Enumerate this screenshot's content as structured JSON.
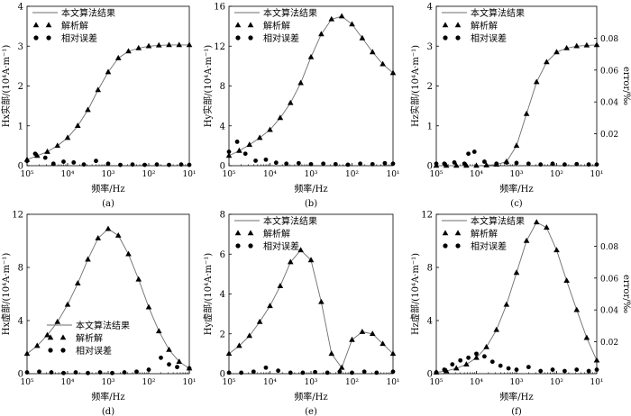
{
  "figure": {
    "x_axis_label": "频率/Hz",
    "x_tick_labels": [
      "10⁵",
      "10⁴",
      "10³",
      "10²",
      "10¹"
    ],
    "right_axis_label": "error/‰",
    "right_tick_labels": [
      "0.02",
      "0.04",
      "0.06",
      "0.08"
    ],
    "legend": {
      "line": "本文算法结果",
      "triangle": "解析解",
      "dot": "相对误差"
    },
    "colors": {
      "line": "#6e6e6e",
      "marker": "#000000"
    }
  },
  "chart_data": [
    {
      "type": "line",
      "panel_label": "(a)",
      "ylabel": "Hx实部/(10⁴A·m⁻¹)",
      "ylim": [
        0,
        4
      ],
      "yticks": [
        0,
        1,
        2,
        3,
        4
      ],
      "right_axis": false,
      "xlim": [
        0,
        4
      ],
      "x_scale": "log (descending 10⁵ → 10¹ Hz)",
      "legend_position": "top-left",
      "series": [
        {
          "name": "本文算法结果",
          "x": [
            0,
            0.25,
            0.5,
            0.75,
            1,
            1.25,
            1.5,
            1.75,
            2,
            2.25,
            2.5,
            2.75,
            3,
            3.25,
            3.5,
            3.75,
            4
          ],
          "values": [
            0.15,
            0.25,
            0.35,
            0.5,
            0.7,
            1.0,
            1.4,
            1.9,
            2.35,
            2.7,
            2.87,
            2.95,
            3.0,
            3.02,
            3.03,
            3.03,
            3.03
          ]
        },
        {
          "name": "解析解",
          "x": [
            0,
            0.25,
            0.5,
            0.75,
            1,
            1.25,
            1.5,
            1.75,
            2,
            2.25,
            2.5,
            2.75,
            3,
            3.25,
            3.5,
            3.75,
            4
          ],
          "values": [
            0.15,
            0.25,
            0.35,
            0.5,
            0.7,
            1.0,
            1.4,
            1.9,
            2.35,
            2.7,
            2.87,
            2.95,
            3.0,
            3.02,
            3.03,
            3.03,
            3.03
          ]
        },
        {
          "name": "相对误差",
          "x": [
            0,
            0.2,
            0.45,
            0.65,
            0.9,
            1.15,
            1.4,
            1.7,
            2,
            2.3,
            2.6,
            2.9,
            3.2,
            3.5,
            3.8,
            4
          ],
          "values": [
            0.12,
            0.3,
            0.2,
            0.05,
            0.1,
            0.08,
            0.03,
            0.12,
            0.05,
            0.02,
            0.03,
            0.02,
            0.03,
            0.02,
            0.03,
            0.02
          ]
        }
      ]
    },
    {
      "type": "line",
      "panel_label": "(b)",
      "ylabel": "Hy实部/(10⁴A·m⁻¹)",
      "ylim": [
        0,
        16
      ],
      "yticks": [
        0,
        4,
        8,
        12,
        16
      ],
      "right_axis": false,
      "xlim": [
        0,
        4
      ],
      "x_scale": "log (descending 10⁵ → 10¹ Hz)",
      "legend_position": "top-left",
      "series": [
        {
          "name": "本文算法结果",
          "x": [
            0,
            0.25,
            0.5,
            0.75,
            1,
            1.25,
            1.5,
            1.75,
            2,
            2.25,
            2.5,
            2.75,
            3,
            3.25,
            3.5,
            3.75,
            4
          ],
          "values": [
            1.0,
            1.5,
            2.1,
            2.8,
            3.6,
            4.8,
            6.3,
            8.3,
            10.9,
            13.2,
            14.7,
            15.0,
            14.2,
            12.8,
            11.4,
            10.2,
            9.3
          ]
        },
        {
          "name": "解析解",
          "x": [
            0,
            0.25,
            0.5,
            0.75,
            1,
            1.25,
            1.5,
            1.75,
            2,
            2.25,
            2.5,
            2.75,
            3,
            3.25,
            3.5,
            3.75,
            4
          ],
          "values": [
            1.0,
            1.5,
            2.1,
            2.8,
            3.6,
            4.8,
            6.3,
            8.3,
            10.9,
            13.2,
            14.7,
            15.0,
            14.2,
            12.8,
            11.4,
            10.2,
            9.3
          ]
        },
        {
          "name": "相对误差",
          "x": [
            0,
            0.2,
            0.4,
            0.65,
            0.9,
            1.15,
            1.4,
            1.7,
            2,
            2.3,
            2.6,
            2.9,
            3.2,
            3.5,
            3.8,
            4
          ],
          "values": [
            1.4,
            2.4,
            1.2,
            0.5,
            0.6,
            0.3,
            0.2,
            0.25,
            0.15,
            0.2,
            0.15,
            0.1,
            0.2,
            0.15,
            0.25,
            0.2
          ]
        }
      ]
    },
    {
      "type": "line",
      "panel_label": "(c)",
      "ylabel": "Hz实部/(10⁴A·m⁻¹)",
      "ylim": [
        0,
        4
      ],
      "yticks": [
        0,
        1,
        2,
        3,
        4
      ],
      "right_axis": true,
      "right_ylim": [
        0,
        0.1
      ],
      "right_yticks": [
        0.02,
        0.04,
        0.06,
        0.08
      ],
      "xlim": [
        0,
        4
      ],
      "x_scale": "log (descending 10⁵ → 10¹ Hz)",
      "legend_position": "top-left",
      "series": [
        {
          "name": "本文算法结果",
          "x": [
            0,
            0.25,
            0.5,
            0.75,
            1,
            1.25,
            1.5,
            1.75,
            2,
            2.25,
            2.5,
            2.75,
            3,
            3.25,
            3.5,
            3.75,
            4
          ],
          "values": [
            0.0,
            0.0,
            0.0,
            0.0,
            0.0,
            0.01,
            0.03,
            0.1,
            0.5,
            1.3,
            2.1,
            2.6,
            2.85,
            2.95,
            3.0,
            3.02,
            3.03
          ]
        },
        {
          "name": "解析解",
          "x": [
            0,
            0.25,
            0.5,
            0.75,
            1,
            1.25,
            1.5,
            1.75,
            2,
            2.25,
            2.5,
            2.75,
            3,
            3.25,
            3.5,
            3.75,
            4
          ],
          "values": [
            0.0,
            0.0,
            0.0,
            0.0,
            0.0,
            0.01,
            0.03,
            0.1,
            0.5,
            1.3,
            2.1,
            2.6,
            2.85,
            2.95,
            3.0,
            3.02,
            3.03
          ]
        },
        {
          "name": "相对误差",
          "x": [
            0,
            0.2,
            0.45,
            0.7,
            0.8,
            0.95,
            1.2,
            1.5,
            1.75,
            2,
            2.3,
            2.6,
            2.9,
            3.2,
            3.5,
            3.8,
            4
          ],
          "values": [
            0.05,
            0.05,
            0.08,
            0.05,
            0.3,
            0.35,
            0.1,
            0.05,
            0.08,
            0.07,
            0.05,
            0.03,
            0.05,
            0.03,
            0.04,
            0.03,
            0.03
          ]
        }
      ]
    },
    {
      "type": "line",
      "panel_label": "(d)",
      "ylabel": "Hx虚部/(10⁴A·m⁻¹)",
      "ylim": [
        0,
        12
      ],
      "yticks": [
        0,
        4,
        8,
        12
      ],
      "right_axis": false,
      "xlim": [
        0,
        4
      ],
      "x_scale": "log (descending 10⁵ → 10¹ Hz)",
      "legend_position": "bottom-center",
      "series": [
        {
          "name": "本文算法结果",
          "x": [
            0,
            0.25,
            0.5,
            0.75,
            1,
            1.25,
            1.5,
            1.75,
            2,
            2.25,
            2.5,
            2.75,
            3,
            3.25,
            3.5,
            3.75,
            4
          ],
          "values": [
            1.5,
            2.1,
            2.9,
            3.9,
            5.2,
            6.8,
            8.6,
            10.2,
            10.9,
            10.4,
            9.0,
            7.1,
            5.0,
            3.2,
            1.8,
            0.9,
            0.4
          ]
        },
        {
          "name": "解析解",
          "x": [
            0,
            0.25,
            0.5,
            0.75,
            1,
            1.25,
            1.5,
            1.75,
            2,
            2.25,
            2.5,
            2.75,
            3,
            3.25,
            3.5,
            3.75,
            4
          ],
          "values": [
            1.5,
            2.1,
            2.9,
            3.9,
            5.2,
            6.8,
            8.6,
            10.2,
            10.9,
            10.4,
            9.0,
            7.1,
            5.0,
            3.2,
            1.8,
            0.9,
            0.4
          ]
        },
        {
          "name": "相对误差",
          "x": [
            0,
            0.3,
            0.6,
            0.9,
            1.2,
            1.5,
            1.8,
            2.1,
            2.4,
            2.7,
            3.0,
            3.3,
            3.5,
            3.7,
            4
          ],
          "values": [
            0.1,
            0.15,
            0.1,
            0.05,
            0.1,
            0.05,
            0.1,
            0.05,
            0.1,
            0.15,
            0.3,
            1.2,
            0.7,
            0.5,
            0.4
          ]
        }
      ]
    },
    {
      "type": "line",
      "panel_label": "(e)",
      "ylabel": "Hy虚部/(10⁴A·m⁻¹)",
      "ylim": [
        0,
        8
      ],
      "yticks": [
        0,
        2,
        4,
        6,
        8
      ],
      "right_axis": false,
      "xlim": [
        0,
        4
      ],
      "x_scale": "log (descending 10⁵ → 10¹ Hz)",
      "legend_position": "top-left",
      "series": [
        {
          "name": "本文算法结果",
          "x": [
            0,
            0.25,
            0.5,
            0.75,
            1,
            1.25,
            1.5,
            1.75,
            2,
            2.25,
            2.5,
            2.75,
            3,
            3.25,
            3.5,
            3.75,
            4
          ],
          "values": [
            1.0,
            1.4,
            1.9,
            2.6,
            3.4,
            4.4,
            5.6,
            6.2,
            5.7,
            3.6,
            1.0,
            0.3,
            1.7,
            2.1,
            2.0,
            1.5,
            1.0
          ]
        },
        {
          "name": "解析解",
          "x": [
            0,
            0.25,
            0.5,
            0.75,
            1,
            1.25,
            1.5,
            1.75,
            2,
            2.25,
            2.5,
            2.75,
            3,
            3.25,
            3.5,
            3.75,
            4
          ],
          "values": [
            1.0,
            1.4,
            1.9,
            2.6,
            3.4,
            4.4,
            5.6,
            6.2,
            5.7,
            3.6,
            1.0,
            0.3,
            1.7,
            2.1,
            2.0,
            1.5,
            1.0
          ]
        },
        {
          "name": "相对误差",
          "x": [
            0,
            0.3,
            0.6,
            0.9,
            1.2,
            1.5,
            1.8,
            2.1,
            2.4,
            2.7,
            3.0,
            3.3,
            3.6,
            4
          ],
          "values": [
            0.05,
            0.05,
            0.1,
            0.3,
            0.15,
            0.05,
            0.05,
            0.08,
            0.05,
            0.1,
            0.05,
            0.1,
            0.05,
            0.1
          ]
        }
      ]
    },
    {
      "type": "line",
      "panel_label": "(f)",
      "ylabel": "Hz虚部/(10⁴A·m⁻¹)",
      "ylim": [
        0,
        12
      ],
      "yticks": [
        0,
        4,
        8,
        12
      ],
      "right_axis": true,
      "right_ylim": [
        0,
        0.1
      ],
      "right_yticks": [
        0.02,
        0.04,
        0.06,
        0.08
      ],
      "xlim": [
        0,
        4
      ],
      "x_scale": "log (descending 10⁵ → 10¹ Hz)",
      "legend_position": "top-left",
      "series": [
        {
          "name": "本文算法结果",
          "x": [
            0,
            0.25,
            0.5,
            0.75,
            1,
            1.25,
            1.5,
            1.75,
            2,
            2.25,
            2.5,
            2.75,
            3,
            3.25,
            3.5,
            3.75,
            4
          ],
          "values": [
            0.1,
            0.2,
            0.4,
            0.7,
            1.2,
            2.0,
            3.3,
            5.2,
            7.6,
            10.0,
            11.4,
            11.0,
            9.3,
            7.0,
            4.8,
            2.7,
            1.0
          ]
        },
        {
          "name": "解析解",
          "x": [
            0,
            0.25,
            0.5,
            0.75,
            1,
            1.25,
            1.5,
            1.75,
            2,
            2.25,
            2.5,
            2.75,
            3,
            3.25,
            3.5,
            3.75,
            4
          ],
          "values": [
            0.1,
            0.2,
            0.4,
            0.7,
            1.2,
            2.0,
            3.3,
            5.2,
            7.6,
            10.0,
            11.4,
            11.0,
            9.3,
            7.0,
            4.8,
            2.7,
            1.0
          ]
        },
        {
          "name": "相对误差",
          "x": [
            0,
            0.2,
            0.4,
            0.6,
            0.8,
            1.0,
            1.2,
            1.4,
            1.6,
            1.8,
            2.0,
            2.3,
            2.6,
            2.9,
            3.2,
            3.5,
            3.8,
            4
          ],
          "values": [
            0.1,
            0.3,
            0.7,
            1.0,
            1.2,
            1.5,
            1.3,
            0.9,
            0.6,
            0.4,
            0.3,
            0.5,
            0.2,
            0.3,
            0.2,
            0.3,
            0.2,
            0.3
          ]
        }
      ]
    }
  ]
}
